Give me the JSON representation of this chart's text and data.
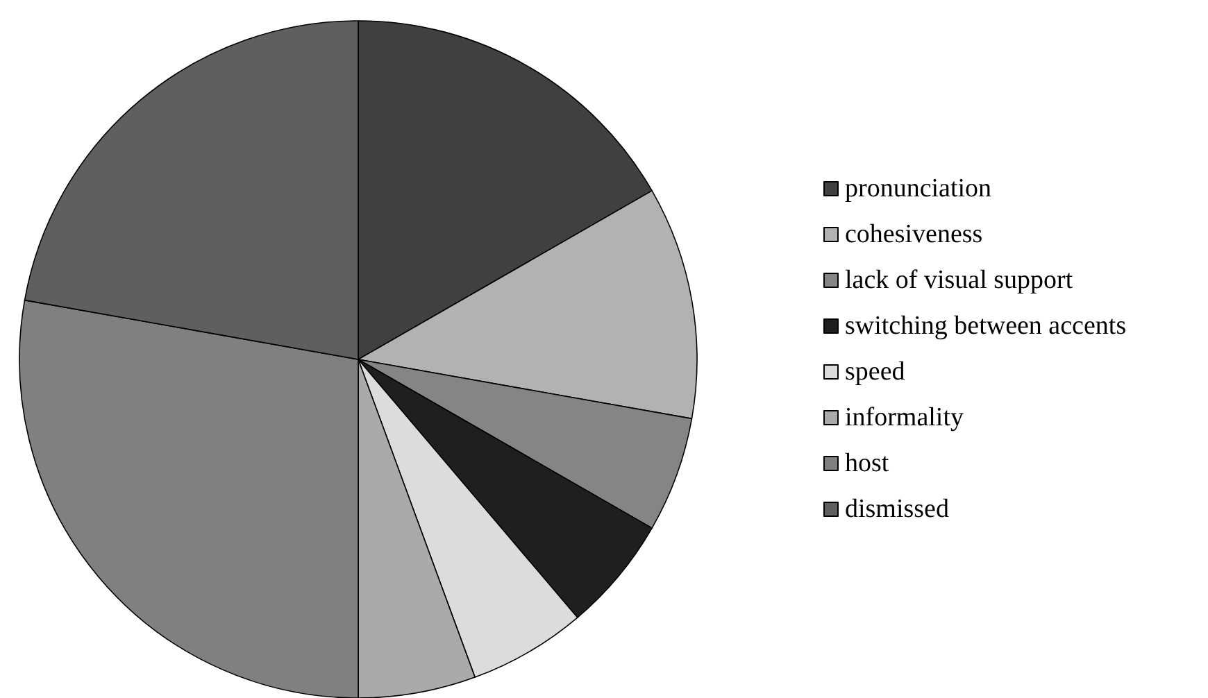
{
  "chart_data": {
    "type": "pie",
    "categories": [
      "pronunciation",
      "cohesiveness",
      "lack of visual support",
      "switching between accents",
      "speed",
      "informality",
      "host",
      "dismissed"
    ],
    "values": [
      16.7,
      11.1,
      5.5,
      5.5,
      5.6,
      5.6,
      27.8,
      22.2
    ],
    "colors": [
      "#404040",
      "#b2b2b2",
      "#858585",
      "#1f1f1f",
      "#dcdcdc",
      "#aaaaaa",
      "#808080",
      "#5f5f5f"
    ],
    "legend": "right"
  }
}
